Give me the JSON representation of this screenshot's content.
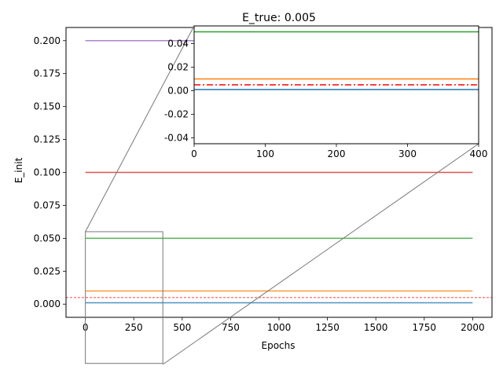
{
  "chart_data": {
    "type": "line",
    "title": "E_true: 0.005",
    "xlabel": "Epochs",
    "ylabel": "E_init",
    "xlim": [
      -100,
      2100
    ],
    "ylim": [
      -0.01,
      0.21
    ],
    "xticks": [
      0,
      250,
      500,
      750,
      1000,
      1250,
      1500,
      1750,
      2000
    ],
    "xtick_labels": [
      "0",
      "250",
      "500",
      "750",
      "1000",
      "1250",
      "1500",
      "1750",
      "2000"
    ],
    "yticks": [
      0.0,
      0.025,
      0.05,
      0.075,
      0.1,
      0.125,
      0.15,
      0.175,
      0.2
    ],
    "ytick_labels": [
      "0.000",
      "0.025",
      "0.050",
      "0.075",
      "0.100",
      "0.125",
      "0.150",
      "0.175",
      "0.200"
    ],
    "grid": false,
    "legend": "none",
    "x": [
      0,
      2000
    ],
    "series": [
      {
        "values": [
          0.001,
          0.001
        ],
        "color": "#1f77b4"
      },
      {
        "values": [
          0.01,
          0.01
        ],
        "color": "#ff7f0e"
      },
      {
        "values": [
          0.05,
          0.05
        ],
        "color": "#2ca02c"
      },
      {
        "values": [
          0.1,
          0.1
        ],
        "color": "#d62728"
      },
      {
        "values": [
          0.2,
          0.2
        ],
        "color": "#9467bd"
      }
    ],
    "reference_line": {
      "value": 0.005,
      "color": "#ff0000",
      "style": "dashed"
    },
    "zoom_region": {
      "xlim": [
        0,
        400
      ],
      "ylim": [
        -0.045,
        0.055
      ]
    },
    "inset": {
      "xlim": [
        0,
        400
      ],
      "ylim": [
        -0.045,
        0.055
      ],
      "xticks": [
        0,
        100,
        200,
        300,
        400
      ],
      "xtick_labels": [
        "0",
        "100",
        "200",
        "300",
        "400"
      ],
      "yticks": [
        -0.04,
        -0.02,
        0.0,
        0.02,
        0.04
      ],
      "ytick_labels": [
        "-0.04",
        "-0.02",
        "0.00",
        "0.02",
        "0.04"
      ],
      "reference_style": "dashdot"
    }
  }
}
